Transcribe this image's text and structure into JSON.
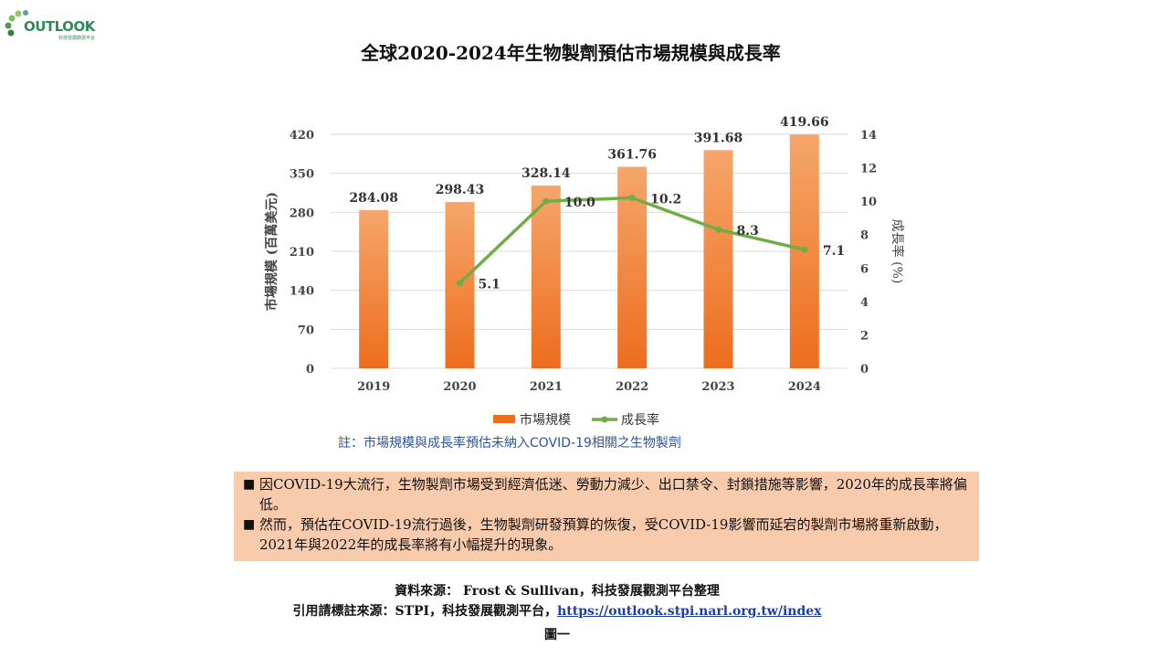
{
  "logo": {
    "text": "OUTLOOK",
    "subtext": "科技發展觀測平台"
  },
  "title": "全球2020-2024年生物製劑預估市場規模與成長率",
  "chart_data": {
    "type": "bar",
    "categories": [
      "2019",
      "2020",
      "2021",
      "2022",
      "2023",
      "2024"
    ],
    "series": [
      {
        "name": "市場規模",
        "type": "bar",
        "axis": "left",
        "values": [
          284.08,
          298.43,
          328.14,
          361.76,
          391.68,
          419.66
        ]
      },
      {
        "name": "成長率",
        "type": "line",
        "axis": "right",
        "values": [
          null,
          5.1,
          10.0,
          10.2,
          8.3,
          7.1
        ]
      }
    ],
    "ylabel": "市場規模 (百萬美元)",
    "y2label": "成長率 (%)",
    "ylim": [
      0,
      420
    ],
    "yticks": [
      0,
      70,
      140,
      210,
      280,
      350,
      420
    ],
    "y2lim": [
      0,
      14
    ],
    "y2ticks": [
      0,
      2,
      4,
      6,
      8,
      10,
      12,
      14
    ],
    "bar_labels": [
      "284.08",
      "298.43",
      "328.14",
      "361.76",
      "391.68",
      "419.66"
    ],
    "line_labels": [
      "",
      "5.1",
      "10.0",
      "10.2",
      "8.3",
      "7.1"
    ],
    "legend_position": "bottom",
    "grid": true,
    "colors": {
      "bar_top": "#f5a66b",
      "bar_bottom": "#ed6d1d",
      "line": "#70ad47"
    }
  },
  "note": "註：市場規模與成長率預估未納入COVID-19相關之生物製劑",
  "bullets": [
    "因COVID-19大流行，生物製劑市場受到經濟低迷、勞動力減少、出口禁令、封鎖措施等影響，2020年的成長率將偏低。",
    "然而，預估在COVID-19流行過後，生物製劑研發預算的恢復，受COVID-19影響而延宕的製劑市場將重新啟動，2021年與2022年的成長率將有小幅提升的現象。"
  ],
  "source": "資料來源： Frost & Sullivan，科技發展觀測平台整理",
  "cite": {
    "prefix": "引用請標註來源：STPI，科技發展觀測平台，",
    "link": "https://outlook.stpi.narl.org.tw/index"
  },
  "figure_label": "圖一"
}
